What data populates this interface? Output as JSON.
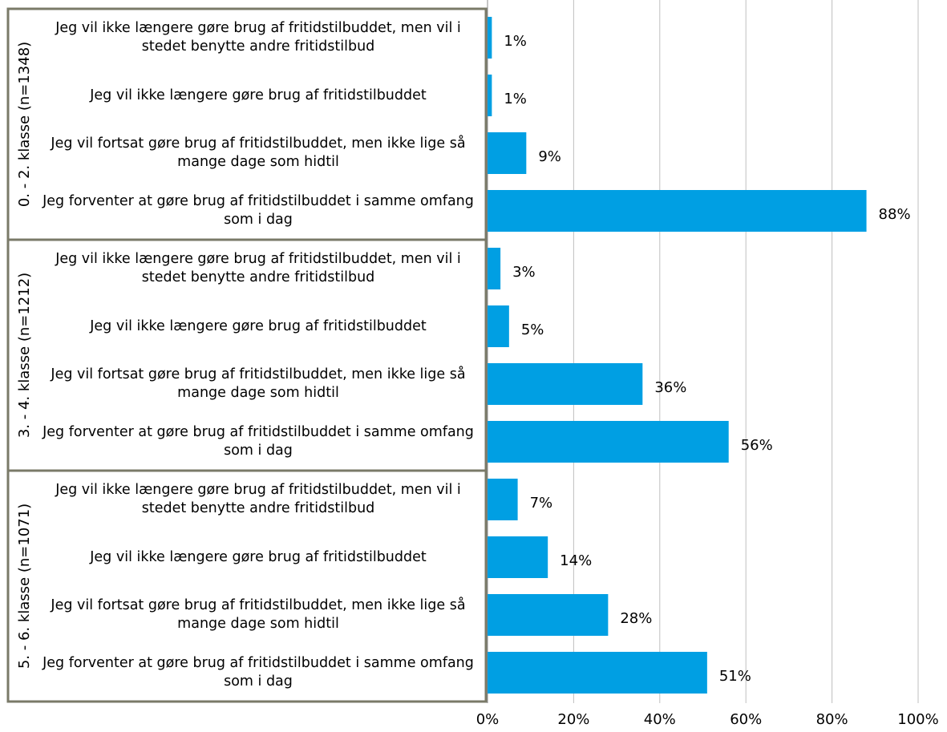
{
  "chart_data": {
    "type": "bar",
    "orientation": "horizontal",
    "color": "#009fe3",
    "groups": [
      {
        "name": "0. - 2. klasse (n=1348)",
        "categories": [
          "Jeg vil ikke længere gøre brug af fritidstilbuddet, men vil i stedet benytte andre fritidstilbud",
          "Jeg vil ikke længere gøre brug af fritidstilbuddet",
          "Jeg vil fortsat gøre brug af fritidstilbuddet, men ikke lige så mange dage som hidtil",
          "Jeg forventer at gøre brug af fritidstilbuddet i samme omfang som i dag"
        ],
        "values": [
          1,
          1,
          9,
          88
        ],
        "value_labels": [
          "1%",
          "1%",
          "9%",
          "88%"
        ]
      },
      {
        "name": "3. - 4. klasse (n=1212)",
        "categories": [
          "Jeg vil ikke længere gøre brug af fritidstilbuddet, men vil i stedet benytte andre fritidstilbud",
          "Jeg vil ikke længere gøre brug af fritidstilbuddet",
          "Jeg vil fortsat gøre brug af fritidstilbuddet, men ikke lige så mange dage som hidtil",
          "Jeg forventer at gøre brug af fritidstilbuddet i samme omfang som i dag"
        ],
        "values": [
          3,
          5,
          36,
          56
        ],
        "value_labels": [
          "3%",
          "5%",
          "36%",
          "56%"
        ]
      },
      {
        "name": "5. - 6. klasse (n=1071)",
        "categories": [
          "Jeg vil ikke længere gøre brug af fritidstilbuddet, men vil i stedet benytte andre fritidstilbud",
          "Jeg vil ikke længere gøre brug af fritidstilbuddet",
          "Jeg vil fortsat gøre brug af fritidstilbuddet, men ikke lige så mange dage som hidtil",
          "Jeg forventer at gøre brug af fritidstilbuddet i samme omfang som i dag"
        ],
        "values": [
          7,
          14,
          28,
          51
        ],
        "value_labels": [
          "7%",
          "14%",
          "28%",
          "51%"
        ]
      }
    ],
    "xlim": [
      0,
      100
    ],
    "xticks": [
      {
        "value": 0,
        "label": "0%"
      },
      {
        "value": 20,
        "label": "20%"
      },
      {
        "value": 40,
        "label": "40%"
      },
      {
        "value": 60,
        "label": "60%"
      },
      {
        "value": 80,
        "label": "80%"
      },
      {
        "value": 100,
        "label": "100%"
      }
    ],
    "grid": true
  }
}
